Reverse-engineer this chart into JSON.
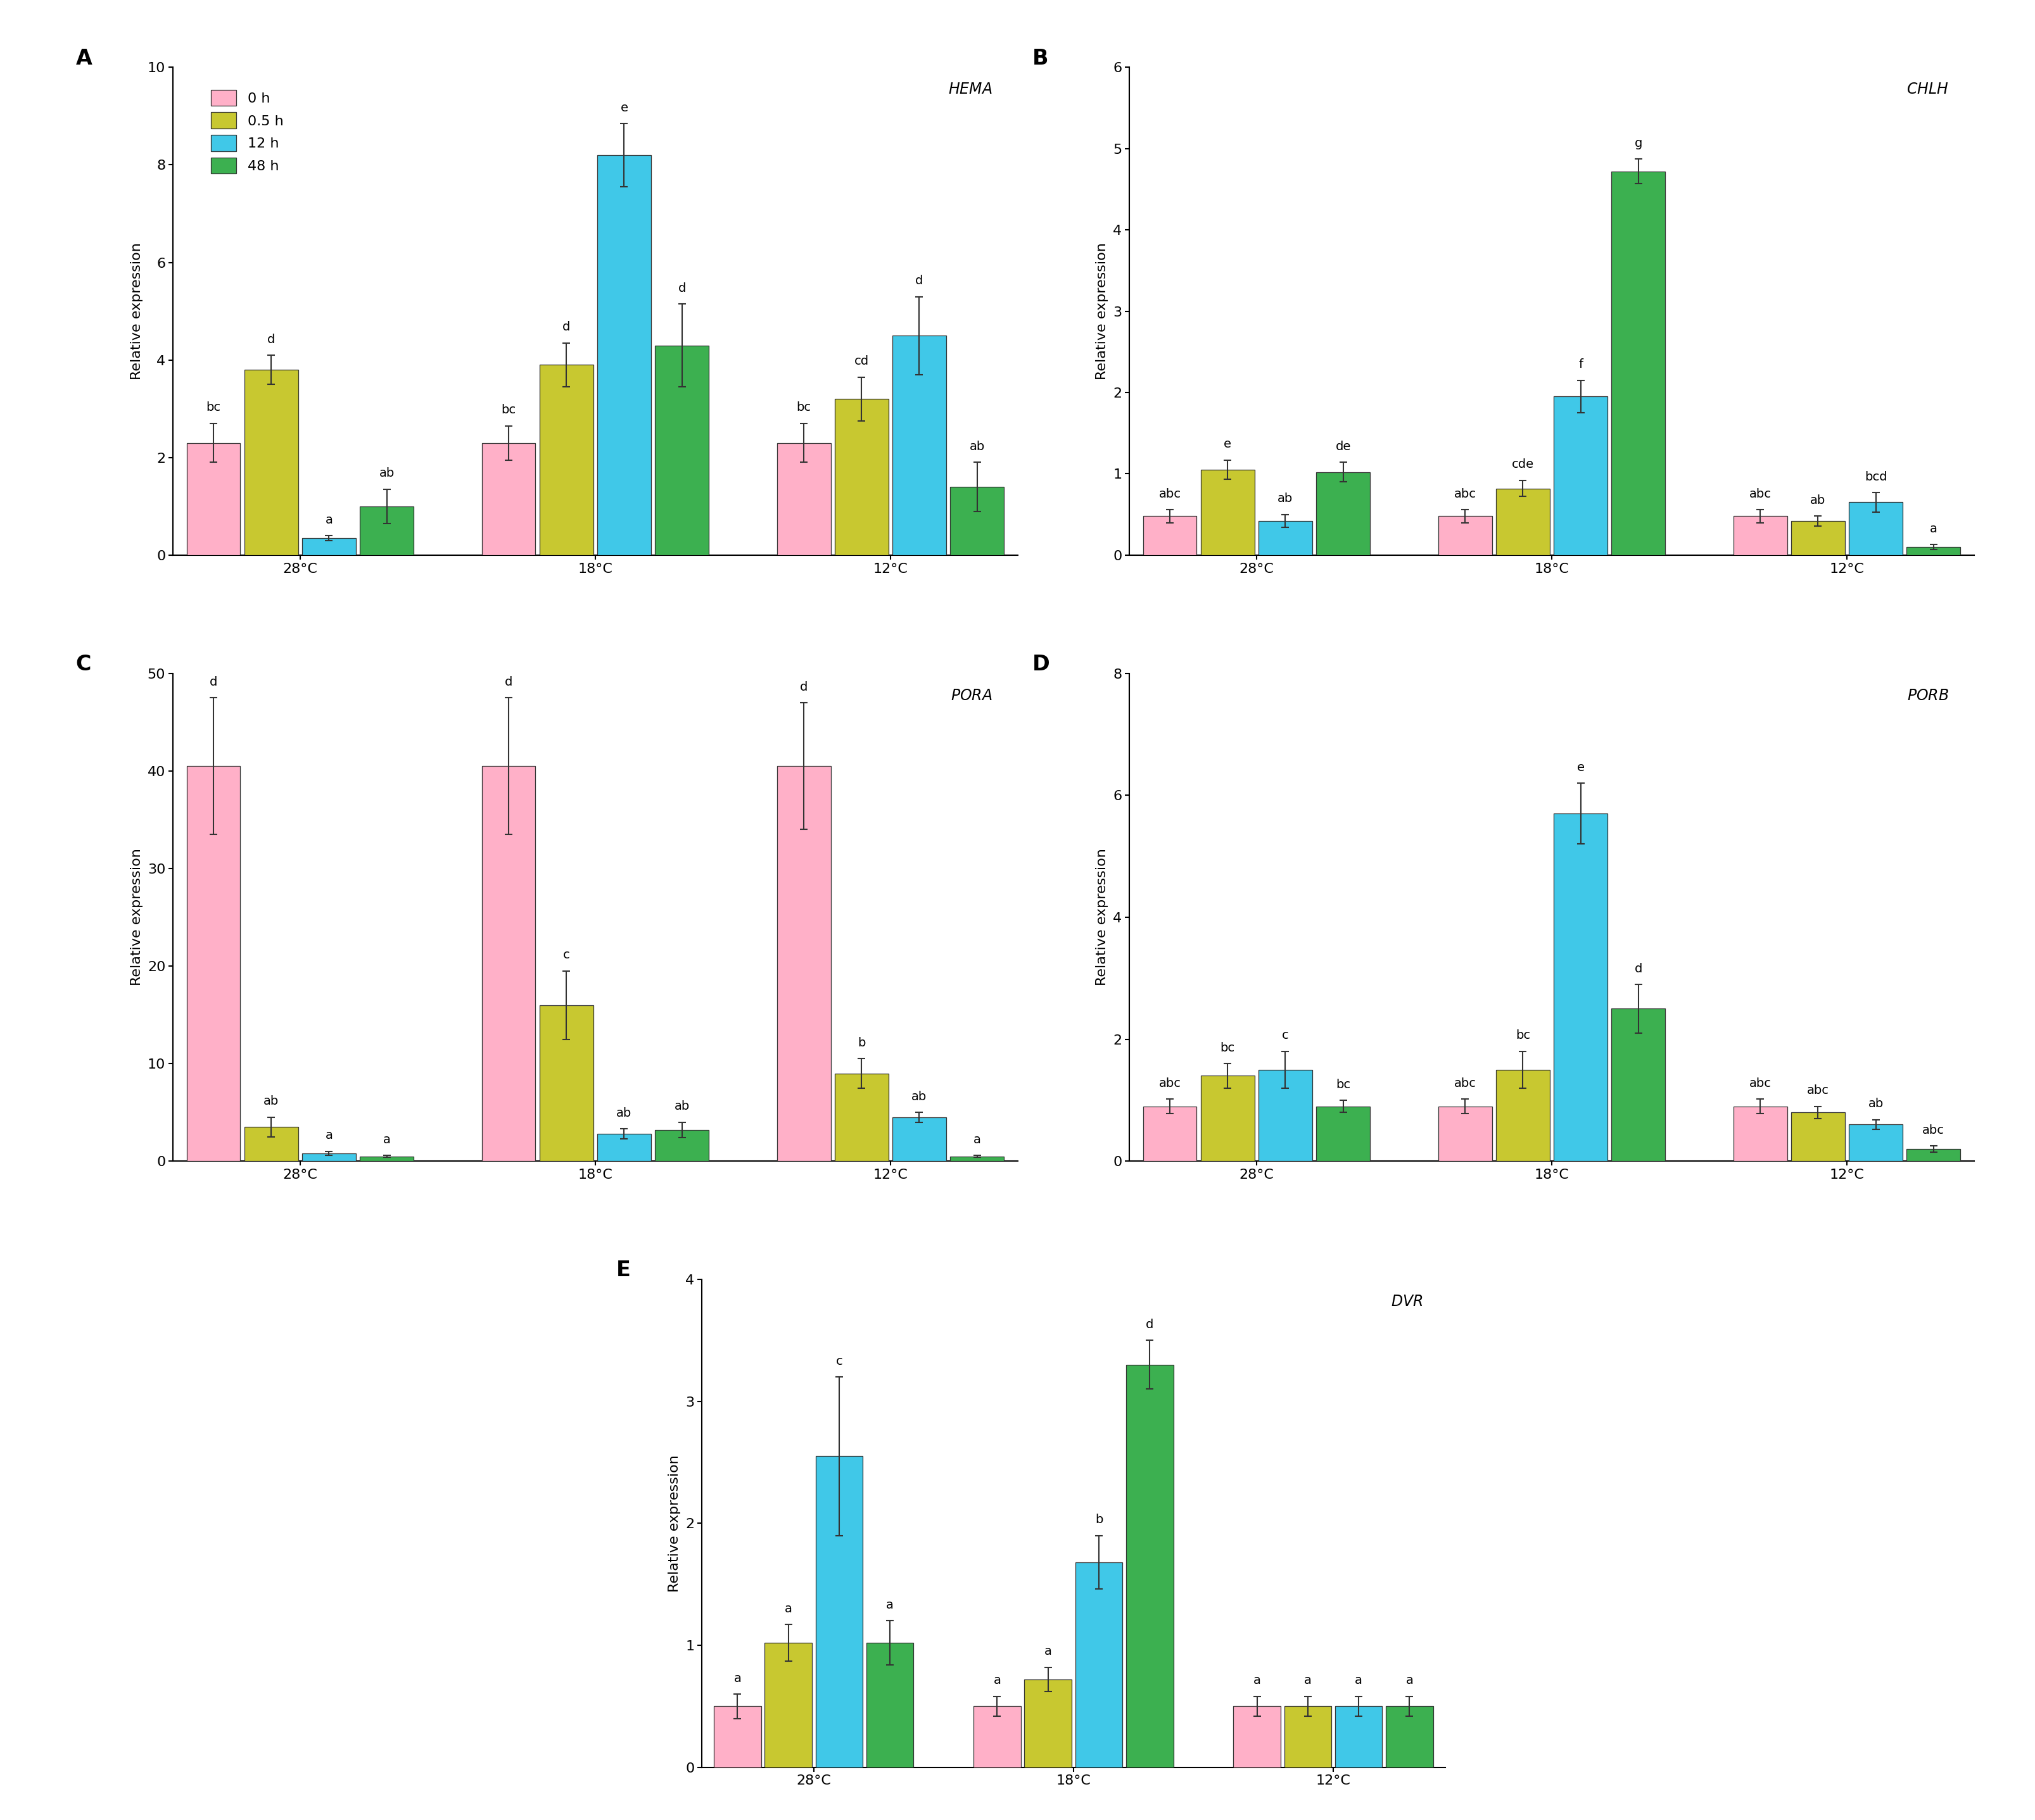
{
  "panels": [
    {
      "label": "A",
      "gene": "HEMA",
      "ylim": [
        0,
        10
      ],
      "yticks": [
        0,
        2,
        4,
        6,
        8,
        10
      ],
      "temps": [
        "28°C",
        "18°C",
        "12°C"
      ],
      "values": [
        [
          2.3,
          3.8,
          0.35,
          1.0
        ],
        [
          2.3,
          3.9,
          8.2,
          4.3
        ],
        [
          2.3,
          3.2,
          4.5,
          1.4
        ]
      ],
      "errors": [
        [
          0.4,
          0.3,
          0.05,
          0.35
        ],
        [
          0.35,
          0.45,
          0.65,
          0.85
        ],
        [
          0.4,
          0.45,
          0.8,
          0.5
        ]
      ],
      "sig_labels": [
        [
          "bc",
          "d",
          "a",
          "ab"
        ],
        [
          "bc",
          "d",
          "e",
          "d"
        ],
        [
          "bc",
          "cd",
          "d",
          "ab"
        ]
      ]
    },
    {
      "label": "B",
      "gene": "CHLH",
      "ylim": [
        0,
        6
      ],
      "yticks": [
        0,
        1,
        2,
        3,
        4,
        5,
        6
      ],
      "temps": [
        "28°C",
        "18°C",
        "12°C"
      ],
      "values": [
        [
          0.48,
          1.05,
          0.42,
          1.02
        ],
        [
          0.48,
          0.82,
          1.95,
          4.72
        ],
        [
          0.48,
          0.42,
          0.65,
          0.1
        ]
      ],
      "errors": [
        [
          0.08,
          0.12,
          0.08,
          0.12
        ],
        [
          0.08,
          0.1,
          0.2,
          0.15
        ],
        [
          0.08,
          0.06,
          0.12,
          0.03
        ]
      ],
      "sig_labels": [
        [
          "abc",
          "e",
          "ab",
          "de"
        ],
        [
          "abc",
          "cde",
          "f",
          "g"
        ],
        [
          "abc",
          "ab",
          "bcd",
          "a"
        ]
      ]
    },
    {
      "label": "C",
      "gene": "PORA",
      "ylim": [
        0,
        50
      ],
      "yticks": [
        0,
        10,
        20,
        30,
        40,
        50
      ],
      "temps": [
        "28°C",
        "18°C",
        "12°C"
      ],
      "values": [
        [
          40.5,
          3.5,
          0.8,
          0.5
        ],
        [
          40.5,
          16.0,
          2.8,
          3.2
        ],
        [
          40.5,
          9.0,
          4.5,
          0.5
        ]
      ],
      "errors": [
        [
          7.0,
          1.0,
          0.2,
          0.1
        ],
        [
          7.0,
          3.5,
          0.5,
          0.8
        ],
        [
          6.5,
          1.5,
          0.5,
          0.1
        ]
      ],
      "sig_labels": [
        [
          "d",
          "ab",
          "a",
          "a"
        ],
        [
          "d",
          "c",
          "ab",
          "ab"
        ],
        [
          "d",
          "b",
          "ab",
          "a"
        ]
      ]
    },
    {
      "label": "D",
      "gene": "PORB",
      "ylim": [
        0,
        8
      ],
      "yticks": [
        0,
        2,
        4,
        6,
        8
      ],
      "temps": [
        "28°C",
        "18°C",
        "12°C"
      ],
      "values": [
        [
          0.9,
          1.4,
          1.5,
          0.9
        ],
        [
          0.9,
          1.5,
          5.7,
          2.5
        ],
        [
          0.9,
          0.8,
          0.6,
          0.2
        ]
      ],
      "errors": [
        [
          0.12,
          0.2,
          0.3,
          0.1
        ],
        [
          0.12,
          0.3,
          0.5,
          0.4
        ],
        [
          0.12,
          0.1,
          0.08,
          0.05
        ]
      ],
      "sig_labels": [
        [
          "abc",
          "bc",
          "c",
          "bc"
        ],
        [
          "abc",
          "bc",
          "e",
          "d"
        ],
        [
          "abc",
          "abc",
          "ab",
          "abc"
        ]
      ]
    },
    {
      "label": "E",
      "gene": "DVR",
      "ylim": [
        0,
        4
      ],
      "yticks": [
        0,
        1,
        2,
        3,
        4
      ],
      "temps": [
        "28°C",
        "18°C",
        "12°C"
      ],
      "values": [
        [
          0.5,
          1.02,
          2.55,
          1.02
        ],
        [
          0.5,
          0.72,
          1.68,
          3.3
        ],
        [
          0.5,
          0.5,
          0.5,
          0.5
        ]
      ],
      "errors": [
        [
          0.1,
          0.15,
          0.65,
          0.18
        ],
        [
          0.08,
          0.1,
          0.22,
          0.2
        ],
        [
          0.08,
          0.08,
          0.08,
          0.08
        ]
      ],
      "sig_labels": [
        [
          "a",
          "a",
          "c",
          "a"
        ],
        [
          "a",
          "a",
          "b",
          "d"
        ],
        [
          "a",
          "a",
          "a",
          "a"
        ]
      ]
    }
  ],
  "bar_colors": [
    "#FFB0C8",
    "#C8C830",
    "#40C8E8",
    "#3CB050"
  ],
  "legend_labels": [
    "0 h",
    "0.5 h",
    "12 h",
    "48 h"
  ],
  "ylabel": "Relative expression",
  "bar_width": 0.18,
  "edge_color": "#333333",
  "font_size": 16,
  "sig_font_size": 14,
  "gene_font_size": 17,
  "panel_label_size": 24
}
